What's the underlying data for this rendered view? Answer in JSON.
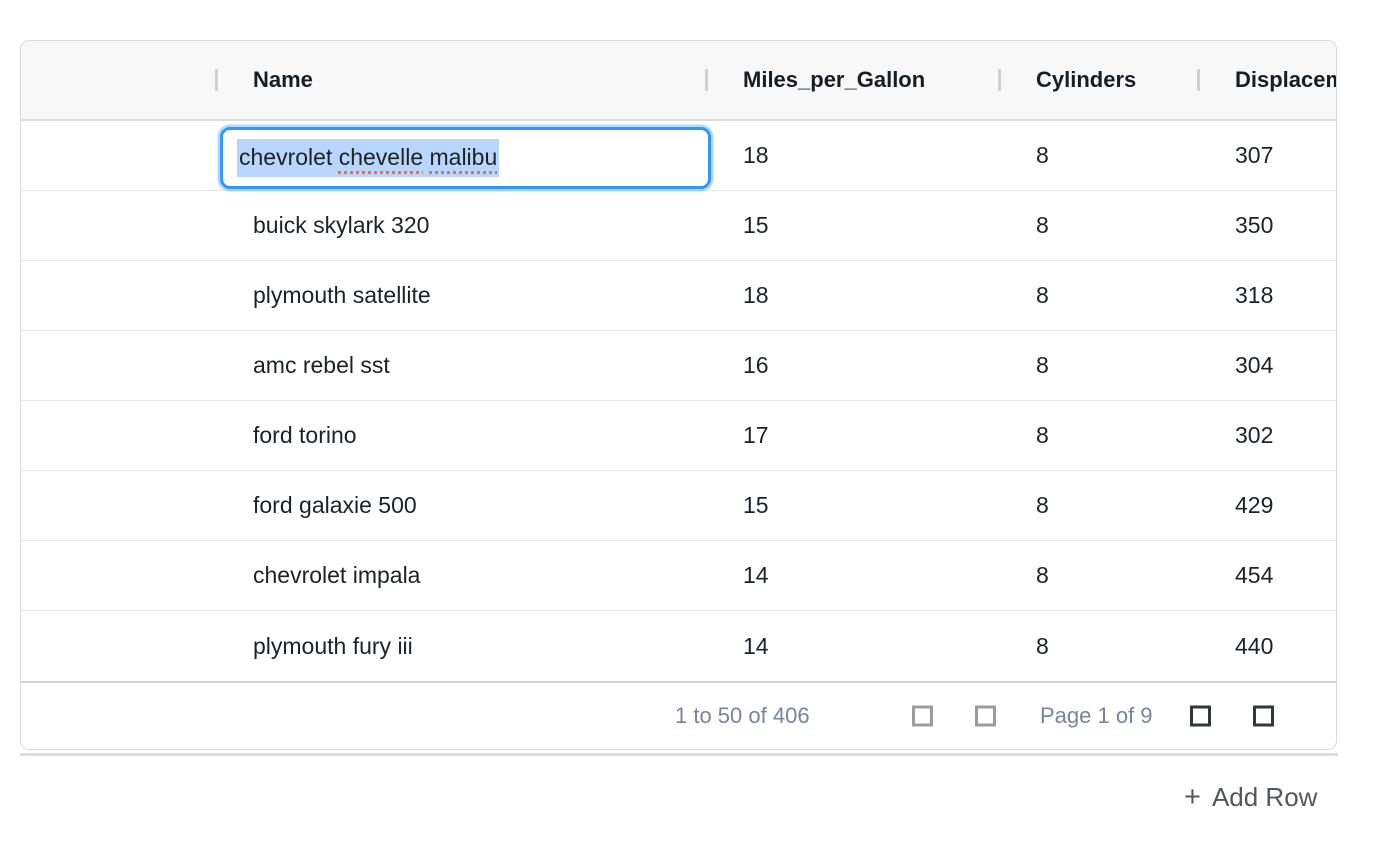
{
  "grid": {
    "header": {
      "columns": [
        {
          "id": "spacer",
          "label": ""
        },
        {
          "id": "name",
          "label": "Name"
        },
        {
          "id": "miles_per_gallon",
          "label": "Miles_per_Gallon"
        },
        {
          "id": "cylinders",
          "label": "Cylinders"
        },
        {
          "id": "displacement",
          "label": "Displacement"
        }
      ]
    },
    "rows": [
      {
        "name": "chevrolet chevelle malibu",
        "miles_per_gallon": "18",
        "cylinders": "8",
        "displacement": "307",
        "editing": true
      },
      {
        "name": "buick skylark 320",
        "miles_per_gallon": "15",
        "cylinders": "8",
        "displacement": "350"
      },
      {
        "name": "plymouth satellite",
        "miles_per_gallon": "18",
        "cylinders": "8",
        "displacement": "318"
      },
      {
        "name": "amc rebel sst",
        "miles_per_gallon": "16",
        "cylinders": "8",
        "displacement": "304"
      },
      {
        "name": "ford torino",
        "miles_per_gallon": "17",
        "cylinders": "8",
        "displacement": "302"
      },
      {
        "name": "ford galaxie 500",
        "miles_per_gallon": "15",
        "cylinders": "8",
        "displacement": "429"
      },
      {
        "name": "chevrolet impala",
        "miles_per_gallon": "14",
        "cylinders": "8",
        "displacement": "454"
      },
      {
        "name": "plymouth fury iii",
        "miles_per_gallon": "14",
        "cylinders": "8",
        "displacement": "440"
      }
    ],
    "editor": {
      "value": "chevrolet chevelle malibu",
      "text_selected": true,
      "tokens": [
        {
          "text": "chevrolet",
          "misspelled": false
        },
        {
          "text": "chevelle",
          "misspelled": true
        },
        {
          "text": "malibu",
          "misspelled": true
        }
      ]
    }
  },
  "footer": {
    "row_summary": "1 to 50 of 406",
    "page_status": "Page 1 of 9",
    "pagination": [
      {
        "icon": "first-page-icon",
        "enabled": false
      },
      {
        "icon": "previous-page-icon",
        "enabled": false
      },
      {
        "icon": "next-page-icon",
        "enabled": true
      },
      {
        "icon": "last-page-icon",
        "enabled": true
      }
    ]
  },
  "actions": {
    "add_row_icon": "+",
    "add_row_label": "Add Row"
  },
  "colors": {
    "accent_blue": "#2f97fd",
    "selection_blue": "#b9d7fc",
    "spellcheck_red": "#e2705e",
    "footer_text": "#78849c",
    "header_bg": "#f8f8f8"
  }
}
